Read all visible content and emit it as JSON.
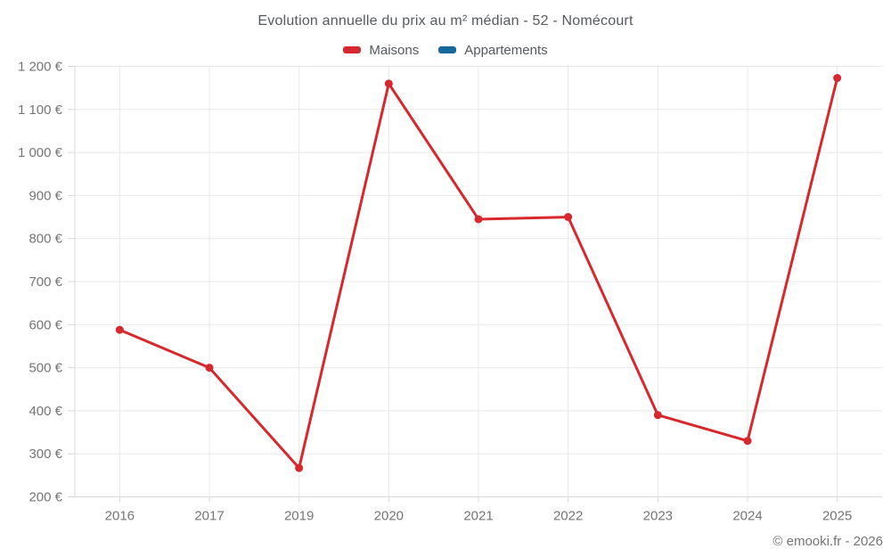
{
  "chart_data": {
    "type": "line",
    "title": "Evolution annuelle du prix au m² médian - 52 - Nomécourt",
    "categories": [
      "2016",
      "2017",
      "2019",
      "2020",
      "2021",
      "2022",
      "2023",
      "2024",
      "2025"
    ],
    "series": [
      {
        "name": "Maisons",
        "color": "#d7282d",
        "values": [
          588,
          500,
          267,
          1160,
          845,
          850,
          390,
          330,
          1173
        ]
      },
      {
        "name": "Appartements",
        "color": "#18699b",
        "values": []
      }
    ],
    "xlabel": "",
    "ylabel": "",
    "ylim": [
      200,
      1200
    ],
    "y_tick_step": 100,
    "y_tick_format": "{value} €",
    "thousands_separator": " ",
    "grid": true,
    "legend_position": "top",
    "axis_text_color": "#757575",
    "gridline_color": "#e8e8e8",
    "axis_line_color": "#d9d9d9",
    "marker_radius": 4.5,
    "line_width": 3
  },
  "footer": {
    "copyright": "© emooki.fr - 2026"
  }
}
